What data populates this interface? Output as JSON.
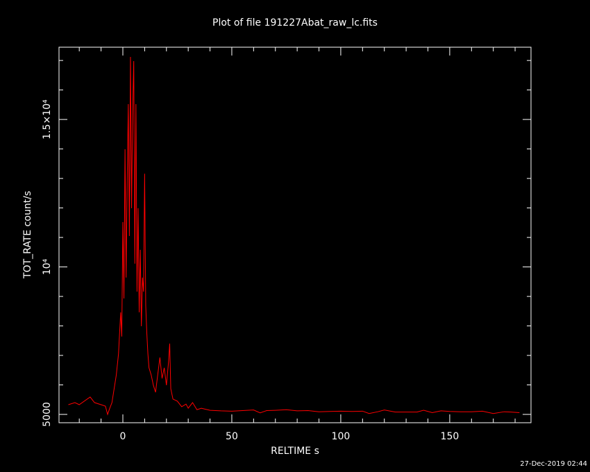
{
  "chart_data": {
    "type": "line",
    "title": "Plot of file 191227Abat_raw_lc.fits",
    "x_label": "RELTIME  s",
    "y_label": "TOT_RATE  count/s",
    "footer": "27-Dec-2019 02:44",
    "xlim": [
      -29.3,
      187.3
    ],
    "ylim": [
      4718,
      17450
    ],
    "xticks": [
      0,
      50,
      100,
      150
    ],
    "yticks": [
      5000,
      {
        "value": 10000,
        "label": "10⁴"
      },
      {
        "value": 15000,
        "label": "1.5×10⁴"
      }
    ],
    "xminorticks": [
      -20,
      -10,
      10,
      20,
      30,
      40,
      60,
      70,
      80,
      90,
      110,
      120,
      130,
      140,
      160,
      170,
      180
    ],
    "yminorticks": [
      6000,
      7000,
      8000,
      9000,
      11000,
      12000,
      13000,
      14000,
      16000,
      17000
    ],
    "series": [
      {
        "color": "#ff0000",
        "x": [
          -25,
          -22,
          -20,
          -15,
          -13,
          -10,
          -8,
          -7,
          -6,
          -5,
          -4,
          -3,
          -2,
          -1,
          -0.5,
          0,
          0.5,
          1,
          1.5,
          2,
          2.5,
          3,
          3.5,
          4,
          4.5,
          5,
          5.5,
          6,
          6.5,
          7,
          7.5,
          8,
          8.5,
          9,
          9.5,
          10,
          10.5,
          11,
          11.5,
          12,
          13,
          14,
          15,
          16,
          17,
          18,
          19,
          20,
          21,
          21.5,
          22,
          23,
          25,
          27,
          29,
          30,
          32,
          34,
          36,
          40,
          45,
          50,
          55,
          60,
          63,
          66,
          70,
          75,
          80,
          85,
          90,
          95,
          100,
          105,
          110,
          113,
          117,
          120,
          125,
          130,
          135,
          138,
          142,
          146,
          150,
          155,
          160,
          165,
          170,
          175,
          178,
          182
        ],
        "values": [
          5330,
          5400,
          5330,
          5590,
          5400,
          5330,
          5280,
          5000,
          5210,
          5400,
          5870,
          6340,
          7050,
          8460,
          7640,
          11520,
          8930,
          13990,
          9640,
          12930,
          15520,
          11050,
          17120,
          11990,
          15280,
          16980,
          10110,
          15520,
          9160,
          11990,
          8460,
          10580,
          7990,
          9640,
          9160,
          13160,
          8690,
          7750,
          7050,
          6580,
          6340,
          5990,
          5750,
          6340,
          6930,
          6220,
          6580,
          5990,
          6810,
          7400,
          5870,
          5520,
          5450,
          5260,
          5350,
          5210,
          5400,
          5160,
          5210,
          5140,
          5120,
          5110,
          5130,
          5150,
          5050,
          5130,
          5140,
          5160,
          5120,
          5130,
          5090,
          5100,
          5110,
          5100,
          5110,
          5030,
          5090,
          5150,
          5080,
          5080,
          5080,
          5140,
          5060,
          5120,
          5100,
          5090,
          5090,
          5110,
          5030,
          5090,
          5080,
          5060
        ]
      }
    ]
  }
}
